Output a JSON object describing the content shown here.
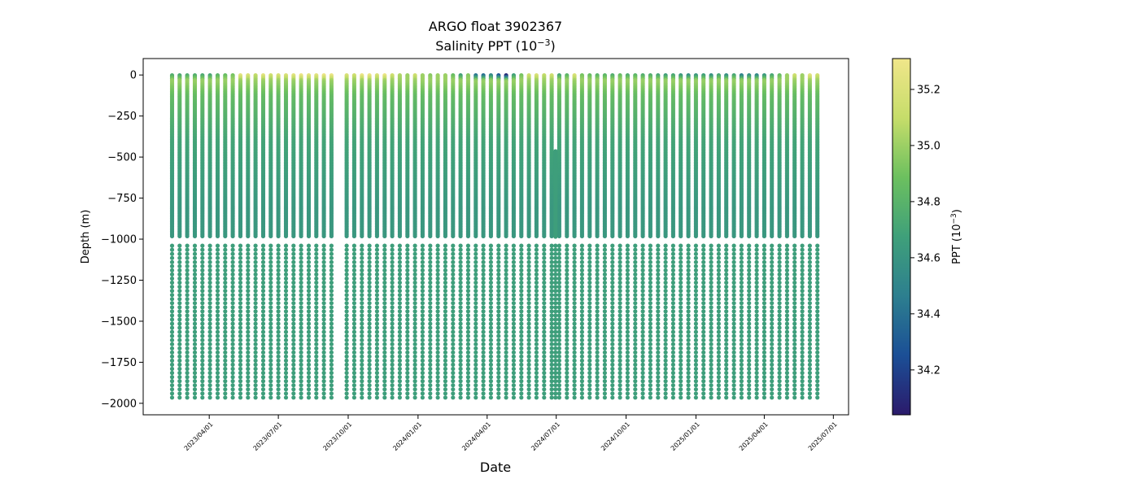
{
  "chart_data": {
    "type": "scatter",
    "title": "ARGO float 3902367",
    "subtitle_prefix": "Salinity PPT (10",
    "subtitle_exp": "−3",
    "subtitle_suffix": ")",
    "xlabel": "Date",
    "ylabel": "Depth (m)",
    "colorbar_label_prefix": "PPT (10",
    "colorbar_label_exp": "−3",
    "colorbar_label_suffix": ")",
    "colormap": "viridis-like (dark blue to yellow)",
    "colormap_stops": [
      "#2b1a6b",
      "#1b4f96",
      "#2d7f8f",
      "#3fa07a",
      "#6cc05f",
      "#c6dd6a",
      "#f0e68a"
    ],
    "ylim": [
      -2070,
      100
    ],
    "y_ticks": [
      0,
      -250,
      -500,
      -750,
      -1000,
      -1250,
      -1500,
      -1750,
      -2000
    ],
    "y_tick_labels": [
      "0",
      "−250",
      "−500",
      "−750",
      "−1000",
      "−1250",
      "−1500",
      "−1750",
      "−2000"
    ],
    "x_ticks": [
      "2023/04/01",
      "2023/07/01",
      "2023/10/01",
      "2024/01/01",
      "2024/04/01",
      "2024/07/01",
      "2024/10/01",
      "2025/01/01",
      "2025/04/01",
      "2025/07/01"
    ],
    "xlim": [
      "2023/01/04",
      "2025/07/21"
    ],
    "colorbar_range": [
      34.04,
      35.31
    ],
    "colorbar_ticks": [
      34.2,
      34.4,
      34.6,
      34.8,
      35.0,
      35.2
    ],
    "colorbar_tick_labels": [
      "34.2",
      "34.4",
      "34.6",
      "34.8",
      "35.0",
      "35.2"
    ],
    "profile_dates": [
      "2023/02/11",
      "2023/02/21",
      "2023/03/03",
      "2023/03/13",
      "2023/03/23",
      "2023/04/02",
      "2023/04/12",
      "2023/04/22",
      "2023/05/02",
      "2023/05/12",
      "2023/05/22",
      "2023/06/01",
      "2023/06/11",
      "2023/06/21",
      "2023/07/01",
      "2023/07/11",
      "2023/07/21",
      "2023/07/31",
      "2023/08/10",
      "2023/08/20",
      "2023/08/30",
      "2023/09/09",
      "2023/09/29",
      "2023/10/09",
      "2023/10/19",
      "2023/10/29",
      "2023/11/08",
      "2023/11/18",
      "2023/11/28",
      "2023/12/08",
      "2023/12/18",
      "2023/12/28",
      "2024/01/07",
      "2024/01/17",
      "2024/01/27",
      "2024/02/06",
      "2024/02/16",
      "2024/02/26",
      "2024/03/07",
      "2024/03/17",
      "2024/03/27",
      "2024/04/06",
      "2024/04/16",
      "2024/04/26",
      "2024/05/06",
      "2024/05/16",
      "2024/05/26",
      "2024/06/05",
      "2024/06/15",
      "2024/06/25",
      "2024/07/05",
      "2024/07/15",
      "2024/07/25",
      "2024/08/04",
      "2024/08/14",
      "2024/08/24",
      "2024/09/03",
      "2024/09/13",
      "2024/09/23",
      "2024/10/03",
      "2024/10/13",
      "2024/10/23",
      "2024/11/02",
      "2024/11/12",
      "2024/11/22",
      "2024/12/02",
      "2024/12/12",
      "2024/12/22",
      "2025/01/01",
      "2025/01/11",
      "2025/01/21",
      "2025/01/31",
      "2025/02/10",
      "2025/02/20",
      "2025/03/02",
      "2025/03/12",
      "2025/03/22",
      "2025/04/01",
      "2025/04/11",
      "2025/04/21",
      "2025/05/01",
      "2025/05/11",
      "2025/05/21",
      "2025/05/31",
      "2025/06/10"
    ],
    "surface_salinity": [
      34.75,
      34.72,
      34.75,
      34.75,
      34.72,
      34.7,
      34.8,
      34.85,
      34.9,
      35.25,
      35.2,
      35.1,
      35.25,
      35.15,
      35.2,
      35.2,
      35.25,
      35.3,
      35.25,
      35.25,
      35.3,
      35.3,
      35.2,
      35.15,
      35.3,
      35.3,
      35.2,
      35.3,
      35.15,
      35.05,
      35.0,
      35.15,
      35.0,
      34.95,
      35.0,
      35.0,
      34.85,
      34.65,
      34.95,
      34.4,
      34.35,
      34.5,
      34.25,
      34.05,
      34.65,
      34.9,
      35.15,
      35.2,
      35.1,
      35.15,
      34.7,
      34.8,
      35.2,
      34.9,
      34.85,
      34.8,
      34.8,
      34.75,
      34.85,
      34.75,
      34.8,
      34.75,
      34.75,
      34.7,
      34.65,
      34.7,
      34.6,
      34.55,
      34.6,
      34.65,
      34.55,
      34.7,
      34.55,
      34.7,
      34.45,
      34.55,
      34.5,
      34.6,
      34.7,
      34.85,
      35.0,
      35.15,
      35.0,
      35.25,
      35.15
    ],
    "surface_layer_salinity": 35.0,
    "mixed_layer_bottom_m": -130,
    "shallow_profile": {
      "date": "2024/06/30",
      "min_depth_m": -465,
      "salinity": 34.66
    },
    "mid_water_salinity": 34.62,
    "deep_salinity": 34.66,
    "dense_sampling_bottom_m": -990,
    "deep_sample_depths": [
      -1040,
      -1065,
      -1090,
      -1115,
      -1140,
      -1165,
      -1190,
      -1215,
      -1240,
      -1265,
      -1290,
      -1315,
      -1340,
      -1365,
      -1390,
      -1415,
      -1440,
      -1465,
      -1490,
      -1515,
      -1540,
      -1565,
      -1590,
      -1615,
      -1640,
      -1665,
      -1690,
      -1715,
      -1740,
      -1765,
      -1790,
      -1815,
      -1840,
      -1865,
      -1890,
      -1915,
      -1940,
      -1965
    ]
  }
}
